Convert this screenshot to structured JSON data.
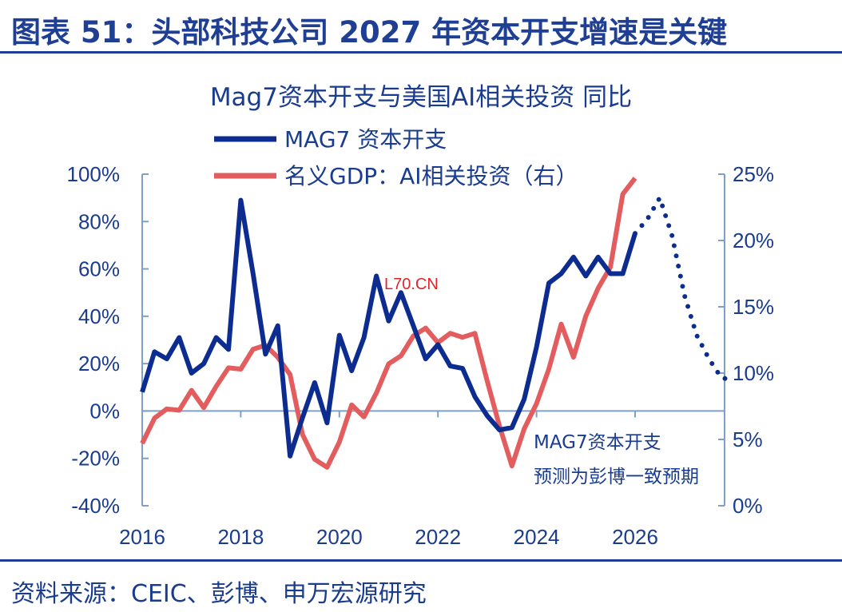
{
  "header": {
    "title": "图表 51：头部科技公司 2027 年资本开支增速是关键"
  },
  "footer": {
    "source": "资料来源：CEIC、彭博、申万宏源研究"
  },
  "watermark": "L70.CN",
  "colors": {
    "brand": "#1f3f95",
    "series_blue": "#0d2c8f",
    "series_red": "#e35d5f",
    "axis": "#7ea0c8"
  },
  "chart_data": {
    "type": "line",
    "title": "Mag7资本开支与美国AI相关投资 同比",
    "legend_position": "top-center",
    "grid": false,
    "annotation": [
      "MAG7资本开支",
      "预测为彭博一致预期"
    ],
    "x_range": [
      2016,
      2028
    ],
    "x_ticks": [
      "2016",
      "2018",
      "2020",
      "2022",
      "2024",
      "2026"
    ],
    "y_left": {
      "range": [
        -40,
        100
      ],
      "ticks": [
        "100%",
        "80%",
        "60%",
        "40%",
        "20%",
        "0%",
        "-20%",
        "-40%"
      ]
    },
    "y_right": {
      "range": [
        0,
        25
      ],
      "ticks": [
        "25%",
        "20%",
        "15%",
        "10%",
        "5%",
        "0%"
      ]
    },
    "series": [
      {
        "name": "MAG7 资本开支",
        "axis": "left",
        "style": "solid",
        "points": [
          [
            2016.0,
            8
          ],
          [
            2016.25,
            25
          ],
          [
            2016.5,
            22
          ],
          [
            2016.75,
            31
          ],
          [
            2017.0,
            16
          ],
          [
            2017.25,
            20
          ],
          [
            2017.5,
            31
          ],
          [
            2017.75,
            26
          ],
          [
            2018.0,
            89
          ],
          [
            2018.25,
            58
          ],
          [
            2018.5,
            24
          ],
          [
            2018.75,
            36
          ],
          [
            2019.0,
            -19
          ],
          [
            2019.25,
            -3
          ],
          [
            2019.5,
            12
          ],
          [
            2019.75,
            -5
          ],
          [
            2020.0,
            32
          ],
          [
            2020.25,
            17
          ],
          [
            2020.5,
            31
          ],
          [
            2020.75,
            57
          ],
          [
            2021.0,
            38
          ],
          [
            2021.25,
            50
          ],
          [
            2021.5,
            36
          ],
          [
            2021.75,
            22
          ],
          [
            2022.0,
            28
          ],
          [
            2022.25,
            19
          ],
          [
            2022.5,
            18
          ],
          [
            2022.75,
            6
          ],
          [
            2023.0,
            -2
          ],
          [
            2023.25,
            -8
          ],
          [
            2023.5,
            -7
          ],
          [
            2023.75,
            5
          ],
          [
            2024.0,
            27
          ],
          [
            2024.25,
            54
          ],
          [
            2024.5,
            58
          ],
          [
            2024.75,
            65
          ],
          [
            2025.0,
            57
          ],
          [
            2025.25,
            65
          ],
          [
            2025.5,
            58
          ],
          [
            2025.75,
            58
          ],
          [
            2026.0,
            75
          ]
        ]
      },
      {
        "name": "MAG7 资本开支（预测）",
        "axis": "left",
        "style": "dotted",
        "points": [
          [
            2026.0,
            75
          ],
          [
            2026.25,
            81
          ],
          [
            2026.5,
            90
          ],
          [
            2026.75,
            74
          ],
          [
            2027.0,
            49
          ],
          [
            2027.25,
            32
          ],
          [
            2027.5,
            22
          ],
          [
            2027.75,
            14
          ],
          [
            2028.0,
            13
          ]
        ]
      },
      {
        "name": "名义GDP：AI相关投资（右）",
        "axis": "right",
        "style": "solid",
        "points": [
          [
            2016.0,
            4.7
          ],
          [
            2016.25,
            6.6
          ],
          [
            2016.5,
            7.3
          ],
          [
            2016.75,
            7.2
          ],
          [
            2017.0,
            8.7
          ],
          [
            2017.25,
            7.4
          ],
          [
            2017.5,
            9.0
          ],
          [
            2017.75,
            10.4
          ],
          [
            2018.0,
            10.3
          ],
          [
            2018.25,
            11.8
          ],
          [
            2018.5,
            12.1
          ],
          [
            2018.75,
            11.2
          ],
          [
            2019.0,
            9.9
          ],
          [
            2019.25,
            5.4
          ],
          [
            2019.5,
            3.5
          ],
          [
            2019.75,
            2.9
          ],
          [
            2020.0,
            4.8
          ],
          [
            2020.25,
            7.6
          ],
          [
            2020.5,
            6.7
          ],
          [
            2020.75,
            8.5
          ],
          [
            2021.0,
            10.7
          ],
          [
            2021.25,
            11.3
          ],
          [
            2021.5,
            12.8
          ],
          [
            2021.75,
            13.4
          ],
          [
            2022.0,
            12.3
          ],
          [
            2022.25,
            13.0
          ],
          [
            2022.5,
            12.7
          ],
          [
            2022.75,
            13.0
          ],
          [
            2023.0,
            9.4
          ],
          [
            2023.25,
            6.0
          ],
          [
            2023.5,
            3.0
          ],
          [
            2023.75,
            5.8
          ],
          [
            2024.0,
            7.7
          ],
          [
            2024.25,
            10.3
          ],
          [
            2024.5,
            13.7
          ],
          [
            2024.75,
            11.2
          ],
          [
            2025.0,
            14.3
          ],
          [
            2025.25,
            16.4
          ],
          [
            2025.5,
            18.0
          ],
          [
            2025.75,
            23.5
          ],
          [
            2026.0,
            24.7
          ]
        ]
      }
    ]
  }
}
